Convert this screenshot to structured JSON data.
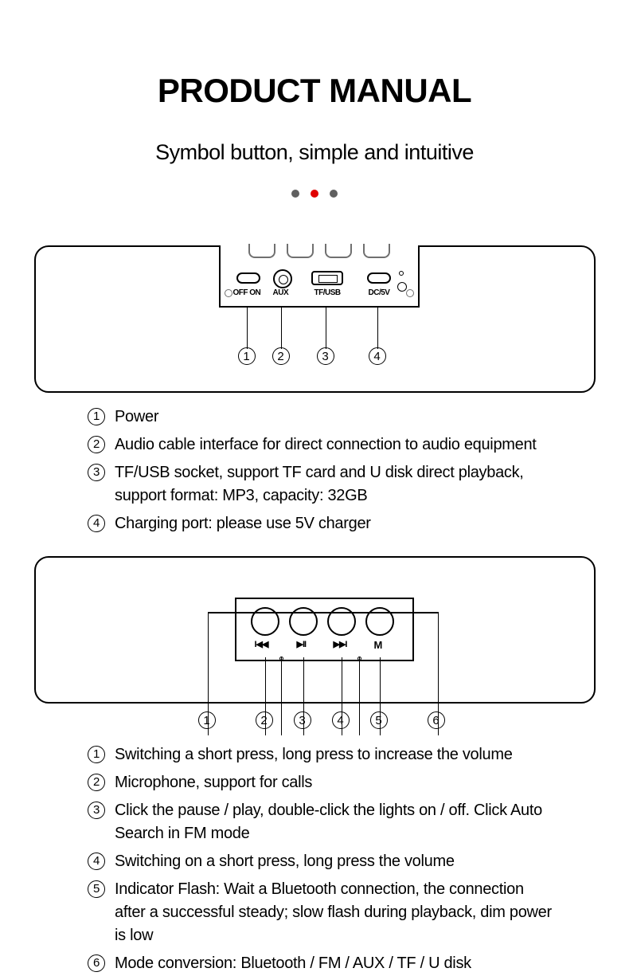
{
  "title": "PRODUCT MANUAL",
  "subtitle": "Symbol button, simple and intuitive",
  "dots": {
    "gray": "#606060",
    "red": "#e00000"
  },
  "diagram1": {
    "port_labels": {
      "p1": "OFF ON",
      "p2": "AUX",
      "p3": "TF/USB",
      "p4": "DC/5V"
    },
    "callouts": {
      "n1": "1",
      "n2": "2",
      "n3": "3",
      "n4": "4"
    }
  },
  "list1": [
    {
      "n": "1",
      "text": "Power"
    },
    {
      "n": "2",
      "text": "Audio cable interface for direct connection to audio equipment"
    },
    {
      "n": "3",
      "text": "TF/USB socket, support TF card and U disk direct playback, support format: MP3, capacity: 32GB"
    },
    {
      "n": "4",
      "text": "Charging port: please use 5V charger"
    }
  ],
  "diagram2": {
    "icons": {
      "prev": "I◀◀",
      "play": "▶II",
      "next": "▶▶I",
      "mode": "M"
    },
    "callouts": {
      "n1": "1",
      "n2": "2",
      "n3": "3",
      "n4": "4",
      "n5": "5",
      "n6": "6"
    }
  },
  "list2": [
    {
      "n": "1",
      "text": "Switching a short press, long press to increase the volume"
    },
    {
      "n": "2",
      "text": "Microphone, support for calls"
    },
    {
      "n": "3",
      "text": "Click the pause / play, double-click the lights on / off. Click Auto Search in FM mode"
    },
    {
      "n": "4",
      "text": "Switching on a short press, long press the volume"
    },
    {
      "n": "5",
      "text": "Indicator Flash: Wait a Bluetooth connection, the connection after a successful steady; slow flash during playback, dim power is low"
    },
    {
      "n": "6",
      "text": "Mode conversion: Bluetooth / FM / AUX / TF / U disk"
    }
  ]
}
